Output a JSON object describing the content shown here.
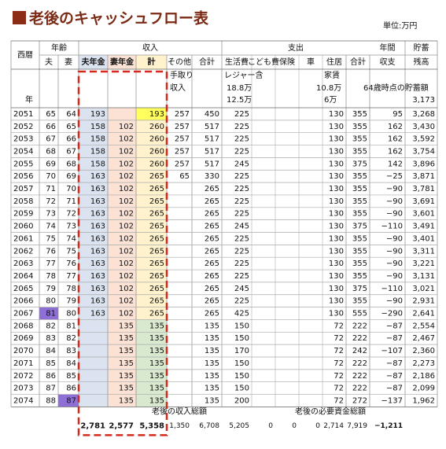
{
  "header": {
    "title": "老後のキャッシュフロー表",
    "unit": "単位:万円"
  },
  "table": {
    "group_headers": [
      "西暦",
      "年齢",
      "収入",
      "支出",
      "年間",
      "貯蓄"
    ],
    "column_headers": [
      "夫",
      "妻",
      "夫年金",
      "妻年金",
      "計",
      "その他",
      "合計",
      "生活費",
      "こども費",
      "保険",
      "車",
      "住居",
      "合計",
      "収支",
      "残高"
    ],
    "notes": {
      "income": [
        "手取り",
        "収入"
      ],
      "living": [
        "レジャー含",
        "18.8万",
        "12.5万"
      ],
      "housing": [
        "家賃",
        "10.8万",
        "6万"
      ],
      "savings_label": "64歳時点の貯蓄額",
      "savings": "3,173",
      "year_label": "年"
    },
    "rows": [
      [
        "2051",
        "65",
        "64",
        "193",
        null,
        "193",
        "257",
        "450",
        "225",
        null,
        null,
        null,
        "130",
        "355",
        "95",
        "3,268"
      ],
      [
        "2052",
        "66",
        "65",
        "158",
        "102",
        "260",
        "257",
        "517",
        "225",
        null,
        null,
        null,
        "130",
        "355",
        "162",
        "3,430"
      ],
      [
        "2053",
        "67",
        "66",
        "158",
        "102",
        "260",
        "257",
        "517",
        "225",
        null,
        null,
        null,
        "130",
        "355",
        "162",
        "3,592"
      ],
      [
        "2054",
        "68",
        "67",
        "158",
        "102",
        "260",
        "257",
        "517",
        "225",
        null,
        null,
        null,
        "130",
        "355",
        "162",
        "3,754"
      ],
      [
        "2055",
        "69",
        "68",
        "158",
        "102",
        "260",
        "257",
        "517",
        "245",
        null,
        null,
        null,
        "130",
        "375",
        "142",
        "3,896"
      ],
      [
        "2056",
        "70",
        "69",
        "163",
        "102",
        "265",
        "65",
        "330",
        "225",
        null,
        null,
        null,
        "130",
        "355",
        "−25",
        "3,871"
      ],
      [
        "2057",
        "71",
        "70",
        "163",
        "102",
        "265",
        null,
        "265",
        "225",
        null,
        null,
        null,
        "130",
        "355",
        "−90",
        "3,781"
      ],
      [
        "2058",
        "72",
        "71",
        "163",
        "102",
        "265",
        null,
        "265",
        "225",
        null,
        null,
        null,
        "130",
        "355",
        "−90",
        "3,691"
      ],
      [
        "2059",
        "73",
        "72",
        "163",
        "102",
        "265",
        null,
        "265",
        "225",
        null,
        null,
        null,
        "130",
        "355",
        "−90",
        "3,601"
      ],
      [
        "2060",
        "74",
        "73",
        "163",
        "102",
        "265",
        null,
        "265",
        "245",
        null,
        null,
        null,
        "130",
        "375",
        "−110",
        "3,491"
      ],
      [
        "2061",
        "75",
        "74",
        "163",
        "102",
        "265",
        null,
        "265",
        "225",
        null,
        null,
        null,
        "130",
        "355",
        "−90",
        "3,401"
      ],
      [
        "2062",
        "76",
        "75",
        "163",
        "102",
        "265",
        null,
        "265",
        "225",
        null,
        null,
        null,
        "130",
        "355",
        "−90",
        "3,311"
      ],
      [
        "2063",
        "77",
        "76",
        "163",
        "102",
        "265",
        null,
        "265",
        "225",
        null,
        null,
        null,
        "130",
        "355",
        "−90",
        "3,221"
      ],
      [
        "2064",
        "78",
        "77",
        "163",
        "102",
        "265",
        null,
        "265",
        "225",
        null,
        null,
        null,
        "130",
        "355",
        "−90",
        "3,131"
      ],
      [
        "2065",
        "79",
        "78",
        "163",
        "102",
        "265",
        null,
        "265",
        "245",
        null,
        null,
        null,
        "130",
        "375",
        "−110",
        "3,021"
      ],
      [
        "2066",
        "80",
        "79",
        "163",
        "102",
        "265",
        null,
        "265",
        "225",
        null,
        null,
        null,
        "130",
        "355",
        "−90",
        "2,931"
      ],
      [
        "2067",
        "81",
        "80",
        "163",
        "102",
        "265",
        null,
        "265",
        "425",
        null,
        null,
        null,
        "130",
        "555",
        "−290",
        "2,641"
      ],
      [
        "2068",
        "82",
        "81",
        null,
        "135",
        "135",
        null,
        "135",
        "150",
        null,
        null,
        null,
        "72",
        "222",
        "−87",
        "2,554"
      ],
      [
        "2069",
        "83",
        "82",
        null,
        "135",
        "135",
        null,
        "135",
        "150",
        null,
        null,
        null,
        "72",
        "222",
        "−87",
        "2,467"
      ],
      [
        "2070",
        "84",
        "83",
        null,
        "135",
        "135",
        null,
        "135",
        "170",
        null,
        null,
        null,
        "72",
        "242",
        "−107",
        "2,360"
      ],
      [
        "2071",
        "85",
        "84",
        null,
        "135",
        "135",
        null,
        "135",
        "150",
        null,
        null,
        null,
        "72",
        "222",
        "−87",
        "2,273"
      ],
      [
        "2072",
        "86",
        "85",
        null,
        "135",
        "135",
        null,
        "135",
        "150",
        null,
        null,
        null,
        "72",
        "222",
        "−87",
        "2,186"
      ],
      [
        "2073",
        "87",
        "86",
        null,
        "135",
        "135",
        null,
        "135",
        "150",
        null,
        null,
        null,
        "72",
        "222",
        "−87",
        "2,099"
      ],
      [
        "2074",
        "88",
        "87",
        null,
        "135",
        "135",
        null,
        "135",
        "200",
        null,
        null,
        null,
        "72",
        "272",
        "−137",
        "1,962"
      ]
    ],
    "totals": {
      "income_label": "老後の収入総額",
      "expense_label": "老後の必要資金総額",
      "cells": [
        null,
        null,
        null,
        "2,781",
        "2,577",
        "5,358",
        "1,350",
        "6,708",
        "5,205",
        "0",
        "0",
        "0",
        "2,714",
        "7,919",
        "−1,211",
        null
      ]
    }
  }
}
